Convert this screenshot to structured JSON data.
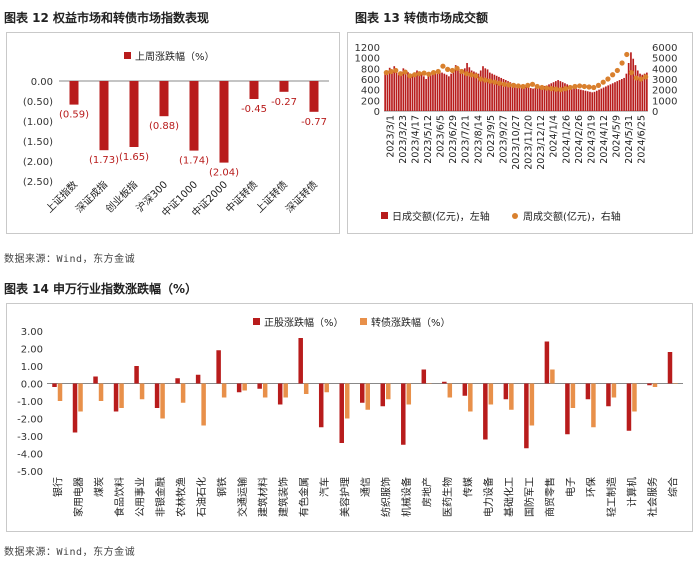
{
  "figures": {
    "fig12_title": "图表 12  权益市场和转债市场指数表现",
    "fig13_title": "图表 13  转债市场成交额",
    "fig14_title": "图表 14   申万行业指数涨跌幅（%）",
    "source_top": "数据来源：Wind，东方金诚",
    "source_bottom": "数据来源：Wind，东方金诚"
  },
  "chart_data": [
    {
      "id": "fig12",
      "type": "bar",
      "title": "",
      "legend": "上周涨跌幅（%）",
      "categories": [
        "上证指数",
        "深证成指",
        "创业板指",
        "沪深300",
        "中证1000",
        "中证2000",
        "中证转债",
        "上证转债",
        "深证转债"
      ],
      "values": [
        -0.59,
        -1.73,
        -1.65,
        -0.88,
        -1.74,
        -2.04,
        -0.45,
        -0.27,
        -0.77
      ],
      "labels": [
        "(0.59)",
        "(1.73)",
        "(1.65)",
        "(0.88)",
        "(1.74)",
        "(2.04)",
        "-0.45",
        "-0.27",
        "-0.77"
      ],
      "yticks": [
        "0.00",
        "(0.50)",
        "(1.00)",
        "(1.50)",
        "(2.00)",
        "(2.50)"
      ],
      "ylim": [
        -2.5,
        0
      ],
      "color": "#b81c1c"
    },
    {
      "id": "fig13",
      "type": "bar+scatter",
      "left_yticks": [
        "0",
        "200",
        "400",
        "600",
        "800",
        "1000",
        "1200"
      ],
      "right_yticks": [
        "0",
        "1000",
        "2000",
        "3000",
        "4000",
        "5000",
        "6000"
      ],
      "left_ylim": [
        0,
        1200
      ],
      "right_ylim": [
        0,
        6000
      ],
      "xticks": [
        "2023/3/1",
        "2023/3/23",
        "2023/4/17",
        "2023/5/12",
        "2023/6/5",
        "2023/6/29",
        "2023/7/21",
        "2023/8/14",
        "2023/9/5",
        "2023/9/27",
        "2023/10/27",
        "2023/11/20",
        "2023/12/12",
        "2024/1/4",
        "2024/1/26",
        "2024/2/26",
        "2024/3/19",
        "2024/4/12",
        "2024/5/9",
        "2024/5/31",
        "2024/6/25"
      ],
      "legend_daily": "日成交额(亿元)，左轴",
      "legend_weekly": "周成交额(亿元)，右轴",
      "daily_values": [
        700,
        760,
        810,
        780,
        840,
        720,
        680,
        740,
        800,
        770,
        730,
        700,
        690,
        720,
        760,
        740,
        700,
        650,
        600,
        680,
        720,
        700,
        740,
        780,
        760,
        720,
        700,
        680,
        650,
        700,
        740,
        860,
        820,
        780,
        760,
        800,
        900,
        820,
        760,
        740,
        720,
        700,
        760,
        840,
        800,
        780,
        720,
        700,
        680,
        660,
        640,
        620,
        600,
        580,
        560,
        540,
        520,
        500,
        490,
        480,
        470,
        460,
        450,
        440,
        430,
        420,
        430,
        440,
        450,
        460,
        470,
        480,
        500,
        520,
        540,
        560,
        580,
        560,
        540,
        520,
        500,
        480,
        460,
        440,
        420,
        410,
        400,
        390,
        380,
        370,
        360,
        350,
        360,
        380,
        400,
        420,
        440,
        460,
        480,
        500,
        520,
        540,
        560,
        580,
        600,
        620,
        700,
        900,
        1100,
        980,
        860,
        760,
        700,
        680,
        700,
        720
      ],
      "weekly_values": [
        3600,
        3700,
        3800,
        3500,
        3650,
        3300,
        3400,
        3500,
        3550,
        3450,
        3600,
        3700,
        4200,
        3900,
        3800,
        4000,
        3700,
        3500,
        3400,
        3300,
        3000,
        2900,
        2800,
        2700,
        2600,
        2500,
        2450,
        2400,
        2350,
        2300,
        2400,
        2500,
        2300,
        2200,
        2150,
        2100,
        2050,
        2000,
        2100,
        2200,
        2300,
        2350,
        2300,
        2250,
        2200,
        2400,
        2700,
        3000,
        3400,
        3800,
        4500,
        5300,
        3600,
        3100,
        3000,
        3200
      ],
      "color_daily": "#b81c1c",
      "color_weekly": "#d9802e"
    },
    {
      "id": "fig14",
      "type": "bar",
      "series": [
        {
          "name": "正股涨跌幅（%）",
          "color": "#b81c1c",
          "values": [
            -0.2,
            -2.8,
            0.4,
            -1.6,
            1.0,
            -1.4,
            0.3,
            0.5,
            1.9,
            -0.5,
            -0.3,
            -1.2,
            2.6,
            -2.5,
            -3.4,
            -1.1,
            -1.3,
            -3.5,
            0.8,
            0.1,
            -0.7,
            -3.2,
            -0.9,
            -3.7,
            2.4,
            -2.9,
            -0.9,
            -1.3,
            -2.7,
            -0.1,
            1.8
          ]
        },
        {
          "name": "转债涨跌幅（%）",
          "color": "#e8904a",
          "values": [
            -1.0,
            -1.6,
            -1.0,
            -1.4,
            -0.9,
            -2.0,
            -1.1,
            -2.4,
            -0.8,
            -0.4,
            -0.8,
            -0.8,
            -0.6,
            -0.5,
            -2.0,
            -1.5,
            -0.9,
            -1.2,
            0.0,
            -0.8,
            -1.6,
            -1.2,
            -1.5,
            -2.4,
            0.8,
            -1.4,
            -2.5,
            -0.8,
            -1.6,
            -0.2,
            0.0
          ]
        }
      ],
      "categories": [
        "银行",
        "家用电器",
        "煤炭",
        "食品饮料",
        "公用事业",
        "非银金融",
        "农林牧渔",
        "石油石化",
        "钢铁",
        "交通运输",
        "建筑材料",
        "建筑装饰",
        "有色金属",
        "汽车",
        "美容护理",
        "通信",
        "纺织服饰",
        "机械设备",
        "房地产",
        "医药生物",
        "传媒",
        "电力设备",
        "基础化工",
        "国防军工",
        "商贸零售",
        "电子",
        "环保",
        "轻工制造",
        "计算机",
        "社会服务",
        "综合"
      ],
      "yticks": [
        "3.00",
        "2.00",
        "1.00",
        "0.00",
        "-1.00",
        "-2.00",
        "-3.00",
        "-4.00",
        "-5.00"
      ],
      "ylim": [
        -5,
        3
      ]
    }
  ]
}
